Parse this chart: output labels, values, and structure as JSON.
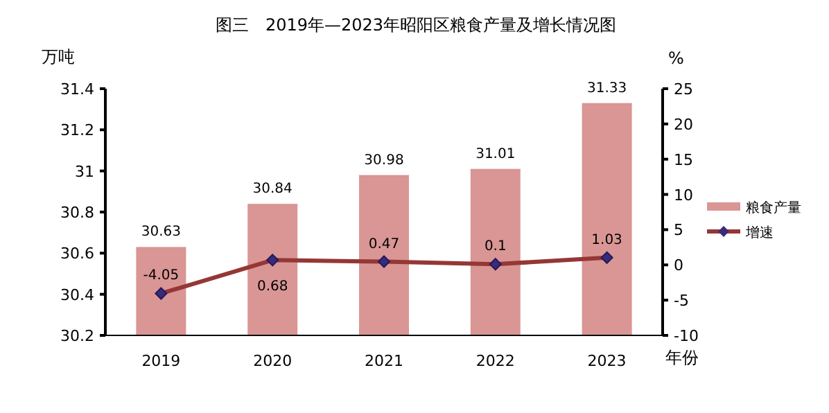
{
  "chart_data": {
    "type": "bar",
    "title": "图三　2019年—2023年昭阳区粮食产量及增长情况图",
    "ylabel": "万吨",
    "y2label": "%",
    "xlabel": "年份",
    "categories": [
      "2019",
      "2020",
      "2021",
      "2022",
      "2023"
    ],
    "series": [
      {
        "name": "粮食产量",
        "color": "#d99694",
        "values": [
          30.63,
          30.84,
          30.98,
          31.01,
          31.33
        ]
      },
      {
        "name": "增速",
        "type": "line",
        "axis": "y2",
        "color": "#953735",
        "marker": "diamond",
        "values": [
          -4.05,
          0.68,
          0.47,
          0.1,
          1.03
        ]
      }
    ],
    "ylim": [
      30.2,
      31.4
    ],
    "yticks": [
      30.2,
      30.4,
      30.6,
      30.8,
      31,
      31.2,
      31.4
    ],
    "y2lim": [
      -10,
      25
    ],
    "y2ticks": [
      -10,
      -5,
      0,
      5,
      10,
      15,
      20,
      25
    ],
    "data_labels": true,
    "legend": "right",
    "grid": false
  }
}
